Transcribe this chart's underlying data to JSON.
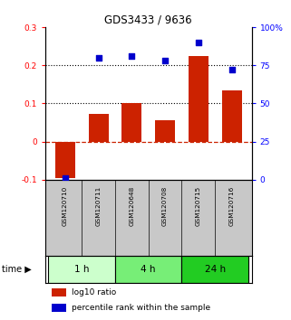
{
  "title": "GDS3433 / 9636",
  "samples": [
    "GSM120710",
    "GSM120711",
    "GSM120648",
    "GSM120708",
    "GSM120715",
    "GSM120716"
  ],
  "log10_ratio": [
    -0.095,
    0.072,
    0.1,
    0.055,
    0.225,
    0.135
  ],
  "percentile_rank": [
    1,
    80,
    81,
    78,
    90,
    72
  ],
  "bar_color": "#cc2200",
  "scatter_color": "#0000cc",
  "left_ylim": [
    -0.1,
    0.3
  ],
  "right_ylim": [
    0,
    100
  ],
  "left_yticks": [
    -0.1,
    0.0,
    0.1,
    0.2,
    0.3
  ],
  "left_yticklabels": [
    "-0.1",
    "0",
    "0.1",
    "0.2",
    "0.3"
  ],
  "right_yticks": [
    0,
    25,
    50,
    75,
    100
  ],
  "right_yticklabels": [
    "0",
    "25",
    "50",
    "75",
    "100%"
  ],
  "hline_y": [
    0.1,
    0.2
  ],
  "zero_line_y": 0.0,
  "background_label": "#c8c8c8",
  "time_groups": [
    {
      "label": "1 h",
      "start": 0,
      "end": 1,
      "color": "#ccffcc"
    },
    {
      "label": "4 h",
      "start": 2,
      "end": 3,
      "color": "#77ee77"
    },
    {
      "label": "24 h",
      "start": 4,
      "end": 5,
      "color": "#22cc22"
    }
  ],
  "legend_items": [
    {
      "color": "#cc2200",
      "label": "log10 ratio"
    },
    {
      "color": "#0000cc",
      "label": "percentile rank within the sample"
    }
  ]
}
